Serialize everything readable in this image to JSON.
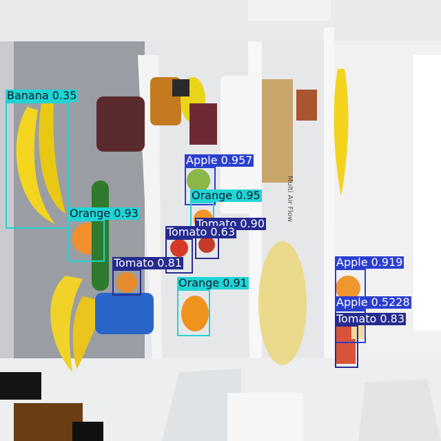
{
  "detections": [
    {
      "id": "banana-1",
      "label": "Banana 0.35",
      "color": "#21d4d4"
    },
    {
      "id": "orange-1",
      "label": "Orange 0.93",
      "color": "#21d4d4"
    },
    {
      "id": "apple-1",
      "label": "Apple 0.957",
      "color": "#2b3fcf"
    },
    {
      "id": "orange-2",
      "label": "Orange 0.95",
      "color": "#21d4d4"
    },
    {
      "id": "tomato-1",
      "label": "Tomato 0.90",
      "color": "#262b8f"
    },
    {
      "id": "tomato-2",
      "label": "Tomato 0.63",
      "color": "#262b8f"
    },
    {
      "id": "tomato-3",
      "label": "Tomato 0.81",
      "color": "#262b8f"
    },
    {
      "id": "orange-3",
      "label": "Orange 0.91",
      "color": "#21d4d4"
    },
    {
      "id": "apple-2",
      "label": "Apple 0.919",
      "color": "#2b3fcf"
    },
    {
      "id": "apple-3",
      "label": "Apple 0.5228",
      "color": "#2b3fcf"
    },
    {
      "id": "tomato-4",
      "label": "Tomato 0.83",
      "color": "#262b8f"
    }
  ],
  "fridge_label": "Multi Air Flow"
}
